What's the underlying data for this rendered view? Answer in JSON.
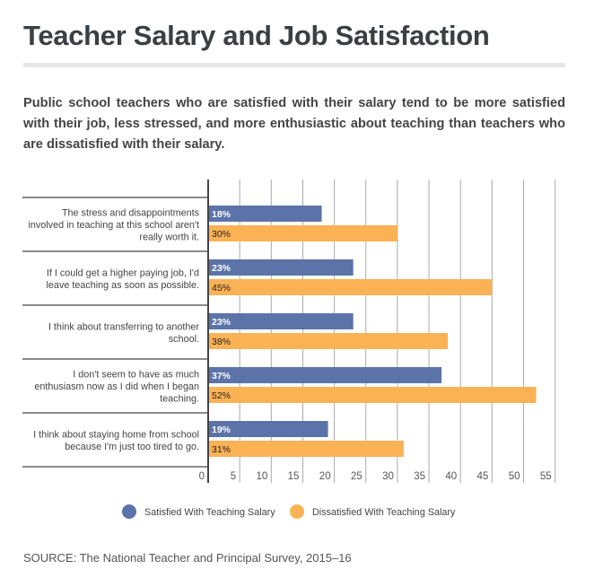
{
  "title": "Teacher Salary and Job Satisfaction",
  "subtitle": "Public school teachers who are satisfied with their salary tend to be more satisfied with their job, less stressed, and more enthusiastic about teaching than teachers who are dissatisfied with their salary.",
  "source": "SOURCE: The National Teacher and Principal Survey, 2015–16",
  "chart_data": {
    "type": "bar",
    "orientation": "horizontal",
    "categories": [
      [
        "The stress and disappointments",
        "involved in teaching at this school aren't",
        "really worth it."
      ],
      [
        "If I could get a higher paying job, I'd",
        "leave teaching as soon as possible."
      ],
      [
        "I think about transferring to another",
        "school."
      ],
      [
        "I don't seem to have as much",
        "enthusiasm now as I did when I began",
        "teaching."
      ],
      [
        "I think about staying home from school",
        "because I'm just too tired to go."
      ]
    ],
    "series": [
      {
        "name": "Satisfied With Teaching Salary",
        "color": "#5b73a8",
        "values": [
          18,
          23,
          23,
          37,
          19
        ]
      },
      {
        "name": "Dissatisfied With Teaching Salary",
        "color": "#fbb255",
        "values": [
          30,
          45,
          38,
          52,
          31
        ]
      }
    ],
    "xlim": [
      0,
      55
    ],
    "xticks": [
      "0",
      "5",
      "10",
      "15",
      "20",
      "25",
      "30",
      "35",
      "40",
      "45",
      "50",
      "55"
    ],
    "legend": "bottom",
    "grid": true
  }
}
